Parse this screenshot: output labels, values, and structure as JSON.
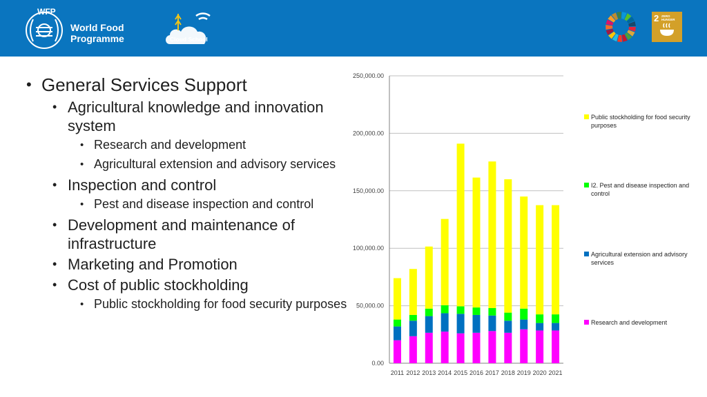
{
  "header": {
    "wfp_tag": "WFP",
    "wfp_name_line1": "World Food",
    "wfp_name_line2": "Programme",
    "cloud_label": "Cloud School",
    "sdg2_number": "2",
    "sdg2_text": "ZERO HUNGER",
    "colors": {
      "bar": "#0a75bf",
      "sdg2": "#d3a029"
    }
  },
  "bullets": [
    {
      "level": 1,
      "text": "General Services Support"
    },
    {
      "level": 2,
      "text": "Agricultural knowledge and innovation system"
    },
    {
      "level": 3,
      "text": "Research and development"
    },
    {
      "level": 3,
      "text": "Agricultural extension and advisory services"
    },
    {
      "level": 2,
      "text": "Inspection and control"
    },
    {
      "level": 3,
      "text": "Pest and disease inspection and control"
    },
    {
      "level": 2,
      "text": "Development and maintenance of infrastructure"
    },
    {
      "level": 2,
      "text": "Marketing and Promotion"
    },
    {
      "level": 2,
      "text": "Cost of public stockholding"
    },
    {
      "level": 3,
      "text": "Public stockholding for food security purposes"
    }
  ],
  "chart_data": {
    "type": "bar",
    "stacked": true,
    "categories": [
      "2011",
      "2012",
      "2013",
      "2014",
      "2015",
      "2016",
      "2017",
      "2018",
      "2019",
      "2020",
      "2021"
    ],
    "ylim": [
      0,
      250000
    ],
    "yticks": [
      "0.00",
      "50,000.00",
      "100,000.00",
      "150,000.00",
      "200,000.00",
      "250,000.00"
    ],
    "grid": true,
    "legend_position": "right",
    "series": [
      {
        "name": "Research and development",
        "color": "#ff00ff",
        "values": [
          20000,
          23500,
          26500,
          27500,
          26000,
          26500,
          28000,
          26500,
          29500,
          28500,
          28500
        ]
      },
      {
        "name": "Agricultural extension and advisory services",
        "color": "#0070c0",
        "values": [
          12000,
          13500,
          14500,
          16000,
          17000,
          15500,
          13500,
          10500,
          8500,
          6500,
          6500
        ]
      },
      {
        "name": "I2. Pest and disease inspection and control",
        "color": "#00ff00",
        "values": [
          6000,
          5000,
          6500,
          7000,
          6500,
          6500,
          6500,
          7000,
          9500,
          7500,
          7500
        ]
      },
      {
        "name": "Public stockholding for food security purposes",
        "color": "#ffff00",
        "values": [
          36000,
          40000,
          54000,
          75000,
          141500,
          113000,
          127500,
          116000,
          97500,
          95000,
          95000
        ]
      }
    ]
  }
}
